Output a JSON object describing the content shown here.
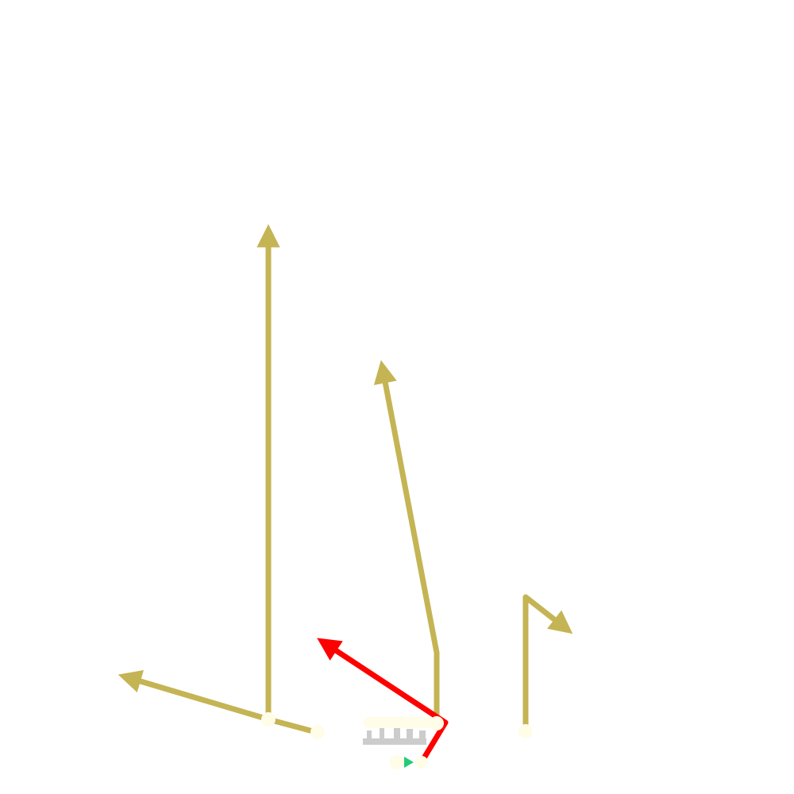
{
  "diagram": {
    "type": "football-play",
    "colors": {
      "background": "#ffffff",
      "route": "#c4b454",
      "highlighted_route": "#ff0000",
      "player_marker": "#fffce8",
      "line_of_scrimmage_marks": "#cccccc",
      "ball_marker": "#22cc77"
    },
    "players": [
      {
        "id": "wr-left",
        "role": "receiver",
        "route": "route-post-left"
      },
      {
        "id": "wr-left-inner",
        "role": "receiver",
        "route": "route-flat-left"
      },
      {
        "id": "te-or-slot",
        "role": "receiver",
        "route": "route-seam"
      },
      {
        "id": "qb",
        "role": "quarterback",
        "route": "route-qb-red"
      },
      {
        "id": "wr-right",
        "role": "receiver",
        "route": "route-out-right"
      },
      {
        "id": "center",
        "role": "lineman",
        "route": null
      }
    ],
    "icons": {
      "arrowhead": "arrowhead-icon",
      "ball": "ball-icon"
    }
  }
}
